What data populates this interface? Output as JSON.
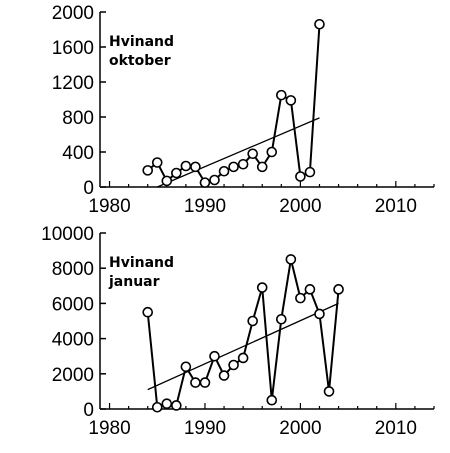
{
  "chart_data": [
    {
      "type": "line",
      "title_lines": [
        "Hvinand",
        "oktober"
      ],
      "xlabel": "",
      "ylabel": "",
      "xlim": [
        1979,
        2014
      ],
      "ylim": [
        0,
        2000
      ],
      "x_ticks": [
        1980,
        1990,
        2000,
        2010
      ],
      "y_ticks": [
        0,
        400,
        800,
        1200,
        1600,
        2000
      ],
      "series": [
        {
          "x": [
            1984,
            1985,
            1986,
            1987,
            1988,
            1989,
            1990,
            1991,
            1992,
            1993,
            1994,
            1995,
            1996,
            1997,
            1998,
            1999,
            2000,
            2001,
            2002
          ],
          "y": [
            190,
            280,
            70,
            160,
            240,
            230,
            50,
            80,
            180,
            230,
            260,
            380,
            230,
            400,
            1050,
            990,
            120,
            170,
            1860
          ]
        }
      ],
      "trendline": {
        "x": [
          1985,
          2002
        ],
        "y": [
          0,
          790
        ]
      },
      "grid": false,
      "legend": false
    },
    {
      "type": "line",
      "title_lines": [
        "Hvinand",
        "januar"
      ],
      "xlabel": "",
      "ylabel": "",
      "xlim": [
        1979,
        2014
      ],
      "ylim": [
        0,
        10000
      ],
      "x_ticks": [
        1980,
        1990,
        2000,
        2010
      ],
      "y_ticks": [
        0,
        2000,
        4000,
        6000,
        8000,
        10000
      ],
      "series": [
        {
          "x": [
            1984,
            1985,
            1986,
            1987,
            1988,
            1989,
            1990,
            1991,
            1992,
            1993,
            1994,
            1995,
            1996,
            1997,
            1998,
            1999,
            2000,
            2001,
            2002,
            2003,
            2004
          ],
          "y": [
            5500,
            100,
            300,
            200,
            2400,
            1500,
            1500,
            3000,
            1900,
            2500,
            2900,
            5000,
            6900,
            500,
            5100,
            8500,
            6300,
            6800,
            5400,
            1000,
            6800
          ]
        }
      ],
      "trendline": {
        "x": [
          1984,
          2004
        ],
        "y": [
          1100,
          6000
        ]
      },
      "grid": false,
      "legend": false
    }
  ]
}
